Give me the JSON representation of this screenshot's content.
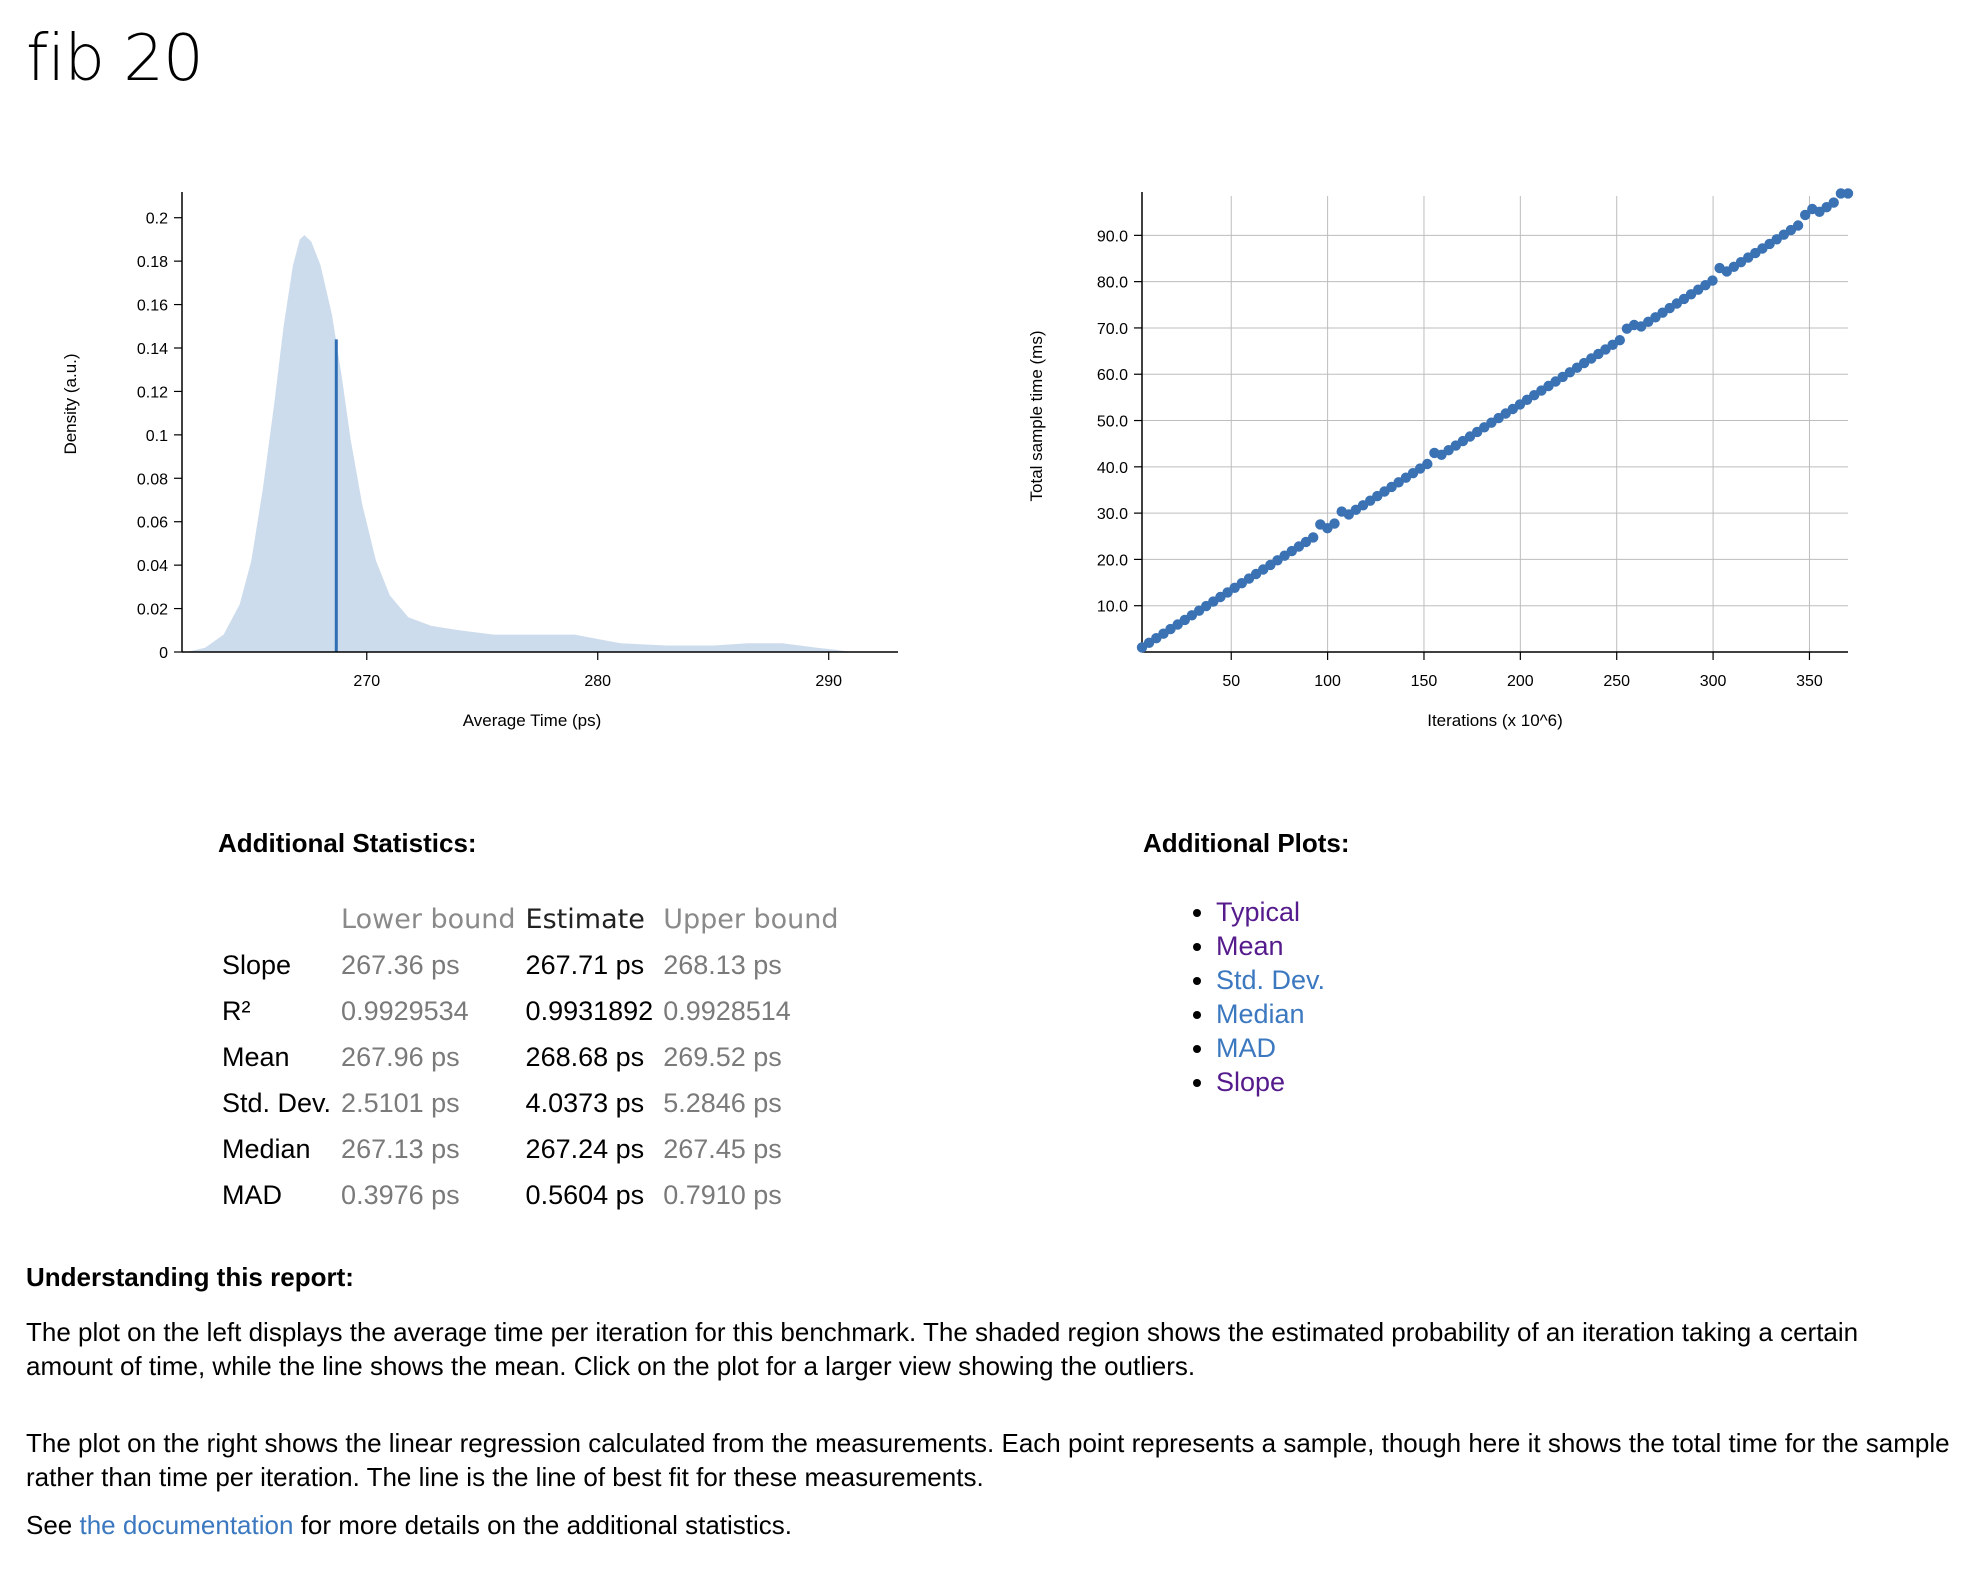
{
  "title": "fib 20",
  "density_chart": {
    "type": "area",
    "xlabel": "Average Time (ps)",
    "ylabel": "Density (a.u.)",
    "xlim": [
      262.0,
      293.0
    ],
    "ylim": [
      0,
      0.21
    ],
    "x_ticks": [
      "270",
      "280",
      "290"
    ],
    "x_tick_values": [
      270,
      280,
      290
    ],
    "y_ticks": [
      "0",
      "0.02",
      "0.04",
      "0.06",
      "0.08",
      "0.1",
      "0.12",
      "0.14",
      "0.16",
      "0.18",
      "0.2"
    ],
    "y_tick_values": [
      0,
      0.02,
      0.04,
      0.06,
      0.08,
      0.1,
      0.12,
      0.14,
      0.16,
      0.18,
      0.2
    ],
    "fill_color": "#cddcec",
    "mean_line_color": "#2f6db5",
    "mean": {
      "x": 268.68,
      "density": 0.144
    },
    "points": [
      [
        262.2,
        0.0
      ],
      [
        263.0,
        0.002
      ],
      [
        263.8,
        0.008
      ],
      [
        264.5,
        0.022
      ],
      [
        265.0,
        0.042
      ],
      [
        265.5,
        0.075
      ],
      [
        266.0,
        0.115
      ],
      [
        266.4,
        0.15
      ],
      [
        266.8,
        0.178
      ],
      [
        267.1,
        0.19
      ],
      [
        267.3,
        0.192
      ],
      [
        267.6,
        0.189
      ],
      [
        268.0,
        0.178
      ],
      [
        268.5,
        0.155
      ],
      [
        268.9,
        0.128
      ],
      [
        269.3,
        0.098
      ],
      [
        269.8,
        0.068
      ],
      [
        270.4,
        0.042
      ],
      [
        271.0,
        0.026
      ],
      [
        271.8,
        0.016
      ],
      [
        272.8,
        0.012
      ],
      [
        274.0,
        0.01
      ],
      [
        275.5,
        0.008
      ],
      [
        277.0,
        0.008
      ],
      [
        279.0,
        0.008
      ],
      [
        280.0,
        0.006
      ],
      [
        281.0,
        0.004
      ],
      [
        283.0,
        0.003
      ],
      [
        285.0,
        0.003
      ],
      [
        286.5,
        0.004
      ],
      [
        288.0,
        0.004
      ],
      [
        289.5,
        0.002
      ],
      [
        290.3,
        0.001
      ],
      [
        291.0,
        0.0
      ]
    ]
  },
  "regression_chart": {
    "type": "scatter",
    "xlabel": "Iterations (x 10^6)",
    "ylabel": "Total sample time (ms)",
    "xlim": [
      3.7,
      370
    ],
    "ylim": [
      0,
      98.5
    ],
    "x_ticks": [
      "50",
      "100",
      "150",
      "200",
      "250",
      "300",
      "350"
    ],
    "x_tick_values": [
      50,
      100,
      150,
      200,
      250,
      300,
      350
    ],
    "y_ticks": [
      "10.0",
      "20.0",
      "30.0",
      "40.0",
      "50.0",
      "60.0",
      "70.0",
      "80.0",
      "90.0"
    ],
    "y_tick_values": [
      10,
      20,
      30,
      40,
      50,
      60,
      70,
      80,
      90
    ],
    "point_color": "#3a72b4",
    "grid": true,
    "sample_count": 100,
    "iterations_step": 3.7,
    "slope_ns_per_iter": 267.71,
    "bumps": [
      [
        26,
        1.8
      ],
      [
        29,
        1.6
      ],
      [
        42,
        1.4
      ],
      [
        69,
        1.5
      ],
      [
        70,
        1.3
      ],
      [
        82,
        1.7
      ],
      [
        94,
        1.3
      ],
      [
        95,
        1.6
      ],
      [
        99,
        1.0
      ]
    ]
  },
  "stats": {
    "heading": "Additional Statistics:",
    "headers": {
      "lower": "Lower bound",
      "estimate": "Estimate",
      "upper": "Upper bound"
    },
    "rows": [
      {
        "name": "Slope",
        "lower": "267.36 ps",
        "estimate": "267.71 ps",
        "upper": "268.13 ps"
      },
      {
        "name": "R²",
        "lower": "0.9929534",
        "estimate": "0.9931892",
        "upper": "0.9928514"
      },
      {
        "name": "Mean",
        "lower": "267.96 ps",
        "estimate": "268.68 ps",
        "upper": "269.52 ps"
      },
      {
        "name": "Std. Dev.",
        "lower": "2.5101 ps",
        "estimate": "4.0373 ps",
        "upper": "5.2846 ps"
      },
      {
        "name": "Median",
        "lower": "267.13 ps",
        "estimate": "267.24 ps",
        "upper": "267.45 ps"
      },
      {
        "name": "MAD",
        "lower": "0.3976 ps",
        "estimate": "0.5604 ps",
        "upper": "0.7910 ps"
      }
    ]
  },
  "plots": {
    "heading": "Additional Plots:",
    "links": [
      {
        "label": "Typical",
        "visited": true
      },
      {
        "label": "Mean",
        "visited": true
      },
      {
        "label": "Std. Dev.",
        "visited": false
      },
      {
        "label": "Median",
        "visited": false
      },
      {
        "label": "MAD",
        "visited": false
      },
      {
        "label": "Slope",
        "visited": true
      }
    ]
  },
  "understanding": {
    "heading": "Understanding this report:",
    "p1": "The plot on the left displays the average time per iteration for this benchmark. The shaded region shows the estimated probability of an iteration taking a certain amount of time, while the line shows the mean. Click on the plot for a larger view showing the outliers.",
    "p2": "The plot on the right shows the linear regression calculated from the measurements. Each point represents a sample, though here it shows the total time for the sample rather than time per iteration. The line is the line of best fit for these measurements.",
    "p3_before": "See ",
    "p3_link": "the documentation",
    "p3_after": " for more details on the additional statistics."
  }
}
